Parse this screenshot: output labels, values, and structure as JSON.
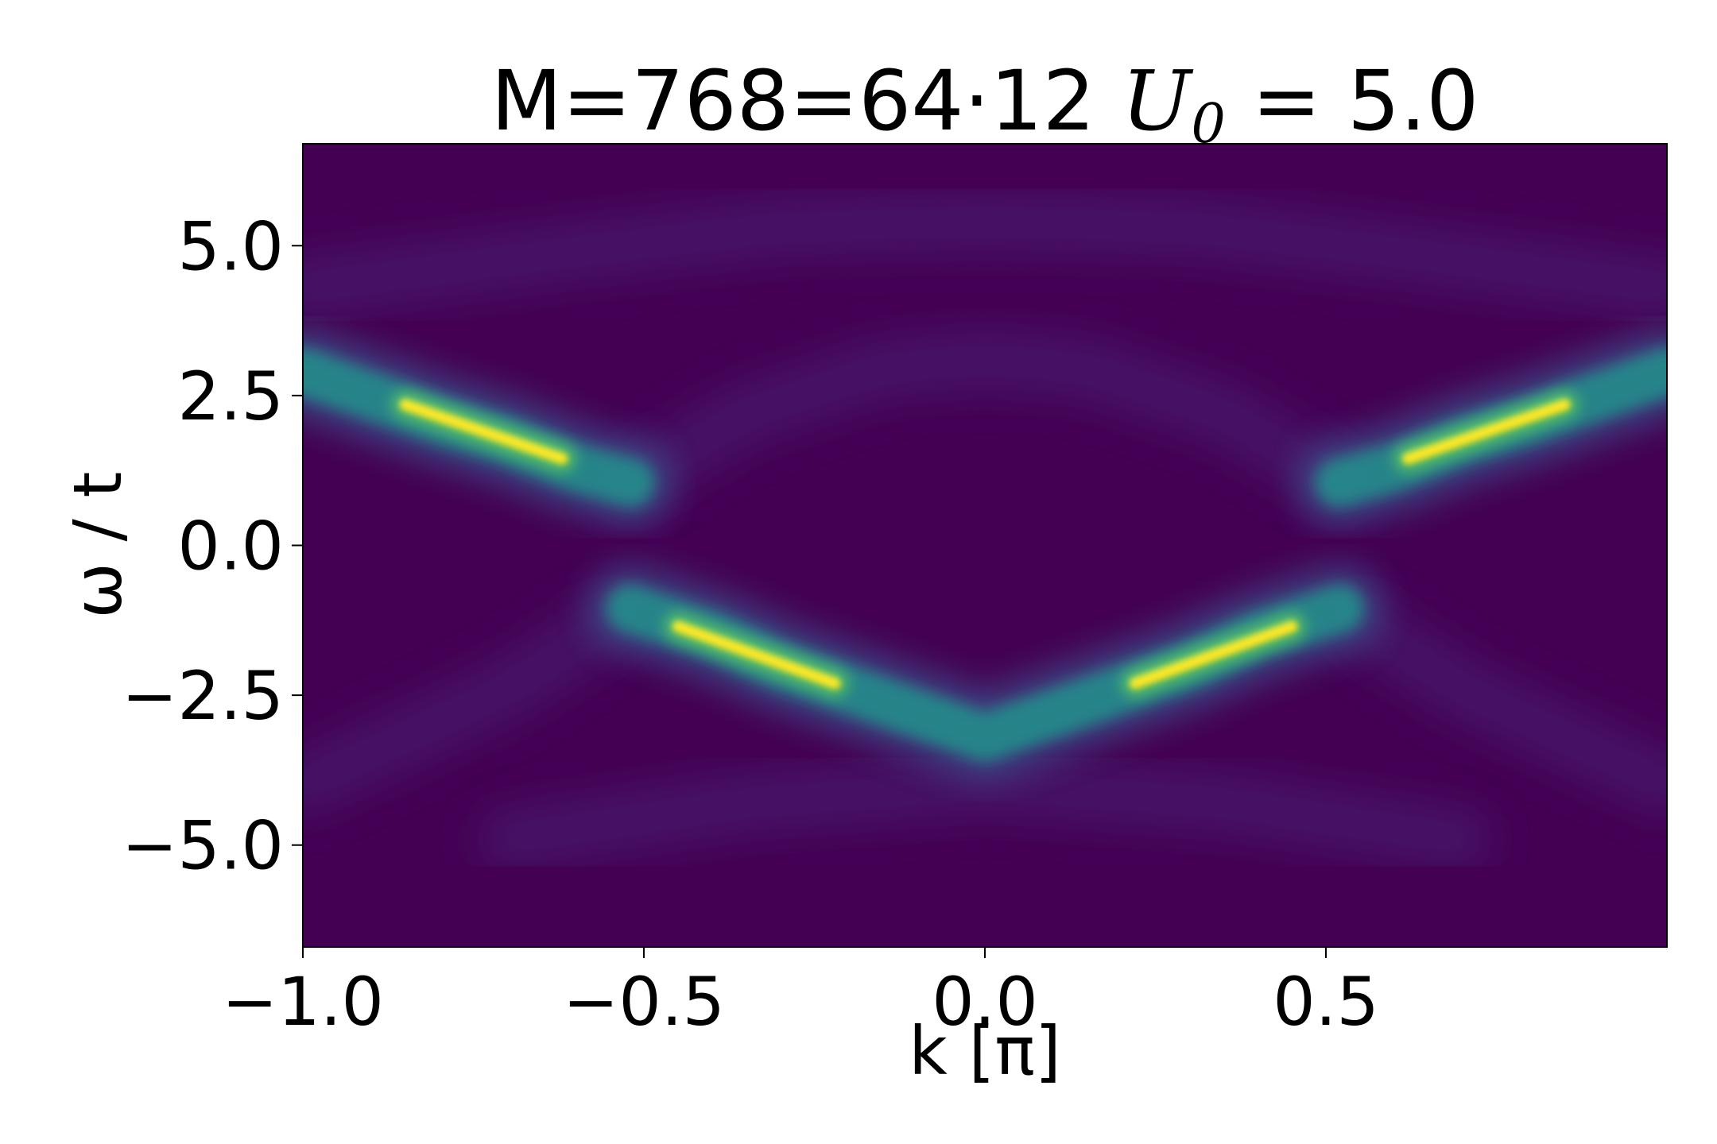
{
  "chart_data": {
    "type": "heatmap",
    "title": {
      "prefix": "M=768=64·12 ",
      "var": "U",
      "sub": "0",
      "suffix": " = 5.0"
    },
    "xlabel": "k [π]",
    "ylabel": "ω / t",
    "xlim": [
      -1.0,
      1.0
    ],
    "ylim": [
      -6.7,
      6.7
    ],
    "xticks": [
      {
        "value": -1.0,
        "label": "−1.0"
      },
      {
        "value": -0.5,
        "label": "−0.5"
      },
      {
        "value": 0.0,
        "label": "0.0"
      },
      {
        "value": 0.5,
        "label": "0.5"
      }
    ],
    "yticks": [
      {
        "value": 5.0,
        "label": "5.0"
      },
      {
        "value": 2.5,
        "label": "2.5"
      },
      {
        "value": 0.0,
        "label": "0.0"
      },
      {
        "value": -2.5,
        "label": "−2.5"
      },
      {
        "value": -5.0,
        "label": "−5.0"
      }
    ],
    "colormap": "viridis",
    "colors": {
      "low": "#440154",
      "mid": "#21918c",
      "high": "#fde725"
    },
    "bands": [
      {
        "name": "upper-band-left",
        "points": [
          [
            -1.0,
            2.9
          ],
          [
            -0.9,
            2.5
          ],
          [
            -0.8,
            2.1
          ],
          [
            -0.7,
            1.75
          ],
          [
            -0.6,
            1.3
          ],
          [
            -0.52,
            1.05
          ]
        ]
      },
      {
        "name": "upper-band-right",
        "points": [
          [
            0.52,
            1.05
          ],
          [
            0.6,
            1.3
          ],
          [
            0.7,
            1.75
          ],
          [
            0.8,
            2.1
          ],
          [
            0.9,
            2.5
          ],
          [
            1.0,
            2.9
          ]
        ]
      },
      {
        "name": "lower-band",
        "points": [
          [
            -0.52,
            -1.05
          ],
          [
            -0.4,
            -1.5
          ],
          [
            -0.3,
            -2.0
          ],
          [
            -0.2,
            -2.4
          ],
          [
            -0.1,
            -2.8
          ],
          [
            0.0,
            -3.2
          ],
          [
            0.1,
            -2.8
          ],
          [
            0.2,
            -2.4
          ],
          [
            0.3,
            -2.0
          ],
          [
            0.4,
            -1.5
          ],
          [
            0.52,
            -1.05
          ]
        ]
      }
    ],
    "bright_segments": [
      {
        "name": "peak-upper-left",
        "from": [
          -0.85,
          2.35
        ],
        "to": [
          -0.62,
          1.45
        ]
      },
      {
        "name": "peak-upper-right",
        "from": [
          0.62,
          1.45
        ],
        "to": [
          0.85,
          2.35
        ]
      },
      {
        "name": "peak-lower-left",
        "from": [
          -0.45,
          -1.35
        ],
        "to": [
          -0.22,
          -2.3
        ]
      },
      {
        "name": "peak-lower-right",
        "from": [
          0.22,
          -2.3
        ],
        "to": [
          0.45,
          -1.35
        ]
      }
    ],
    "faint_arcs": [
      {
        "name": "shadow-arc-inner-top",
        "points": [
          [
            -0.52,
            1.05
          ],
          [
            -0.35,
            2.2
          ],
          [
            -0.15,
            2.95
          ],
          [
            0.0,
            3.1
          ],
          [
            0.15,
            2.95
          ],
          [
            0.35,
            2.2
          ],
          [
            0.52,
            1.05
          ]
        ]
      },
      {
        "name": "shadow-arc-outer-top",
        "points": [
          [
            -1.0,
            4.3
          ],
          [
            -0.6,
            4.9
          ],
          [
            -0.3,
            5.3
          ],
          [
            0.0,
            5.4
          ],
          [
            0.3,
            5.3
          ],
          [
            0.6,
            4.9
          ],
          [
            1.0,
            4.3
          ]
        ]
      },
      {
        "name": "shadow-arc-lower-left",
        "points": [
          [
            -1.0,
            -4.0
          ],
          [
            -0.85,
            -3.2
          ],
          [
            -0.7,
            -2.4
          ],
          [
            -0.55,
            -1.3
          ]
        ]
      },
      {
        "name": "shadow-arc-lower-right",
        "points": [
          [
            0.55,
            -1.3
          ],
          [
            0.7,
            -2.4
          ],
          [
            0.85,
            -3.2
          ],
          [
            1.0,
            -4.0
          ]
        ]
      },
      {
        "name": "shadow-arc-bottom",
        "points": [
          [
            -0.7,
            -4.9
          ],
          [
            -0.35,
            -4.3
          ],
          [
            0.0,
            -4.0
          ],
          [
            0.35,
            -4.3
          ],
          [
            0.7,
            -4.9
          ]
        ]
      }
    ]
  }
}
